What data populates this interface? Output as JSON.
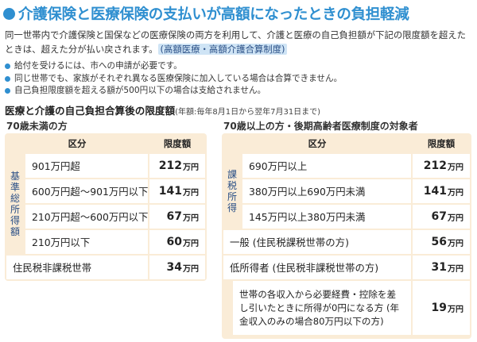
{
  "title": "介護保険と医療保険の支払いが高額になったときの負担軽減",
  "intro": {
    "text": "同一世帯内で介護保険と国保などの医療保険の両方を利用して、介護と医療の自己負担額が下記の限度額を超えたときは、超えた分が払い戻されます。",
    "highlight": "(高額医療・高額介護合算制度)"
  },
  "notes": [
    "給付を受けるには、市への申請が必要です。",
    "同じ世帯でも、家族がそれぞれ異なる医療保険に加入している場合は合算できません。",
    "自己負担限度額を超える額が500円以下の場合は支給されません。"
  ],
  "heading": {
    "main": "医療と介護の自己負担合算後の限度額",
    "sub": "(年額:毎年8月1日から翌年7月31日まで)"
  },
  "unit": "万円",
  "colors": {
    "accent": "#2f8fd0",
    "panel": "#faecd7",
    "highlight": "#cfe4f5"
  },
  "table_under70": {
    "caption": "70歳未満の方",
    "headers": [
      "区分",
      "限度額"
    ],
    "group_label": "基準総所得額",
    "rows": [
      {
        "label": "901万円超",
        "amount": "212"
      },
      {
        "label": "600万円超～901万円以下",
        "amount": "141"
      },
      {
        "label": "210万円超～600万円以下",
        "amount": "67"
      },
      {
        "label": "210万円以下",
        "amount": "60"
      },
      {
        "label": "住民税非課税世帯",
        "amount": "34"
      }
    ]
  },
  "table_over70": {
    "caption": "70歳以上の方・後期高齢者医療制度の対象者",
    "headers": [
      "区分",
      "限度額"
    ],
    "group_label": "課税所得",
    "rows": [
      {
        "label": "690万円以上",
        "amount": "212"
      },
      {
        "label": "380万円以上690万円未満",
        "amount": "141"
      },
      {
        "label": "145万円以上380万円未満",
        "amount": "67"
      },
      {
        "label": "一般 (住民税課税世帯の方)",
        "amount": "56"
      },
      {
        "label": "低所得者 (住民税非課税世帯の方)",
        "amount": "31"
      },
      {
        "label": "世帯の各収入から必要経費・控除を差し引いたときに所得が0円になる方 (年金収入のみの場合80万円以下の方)",
        "amount": "19"
      }
    ]
  }
}
